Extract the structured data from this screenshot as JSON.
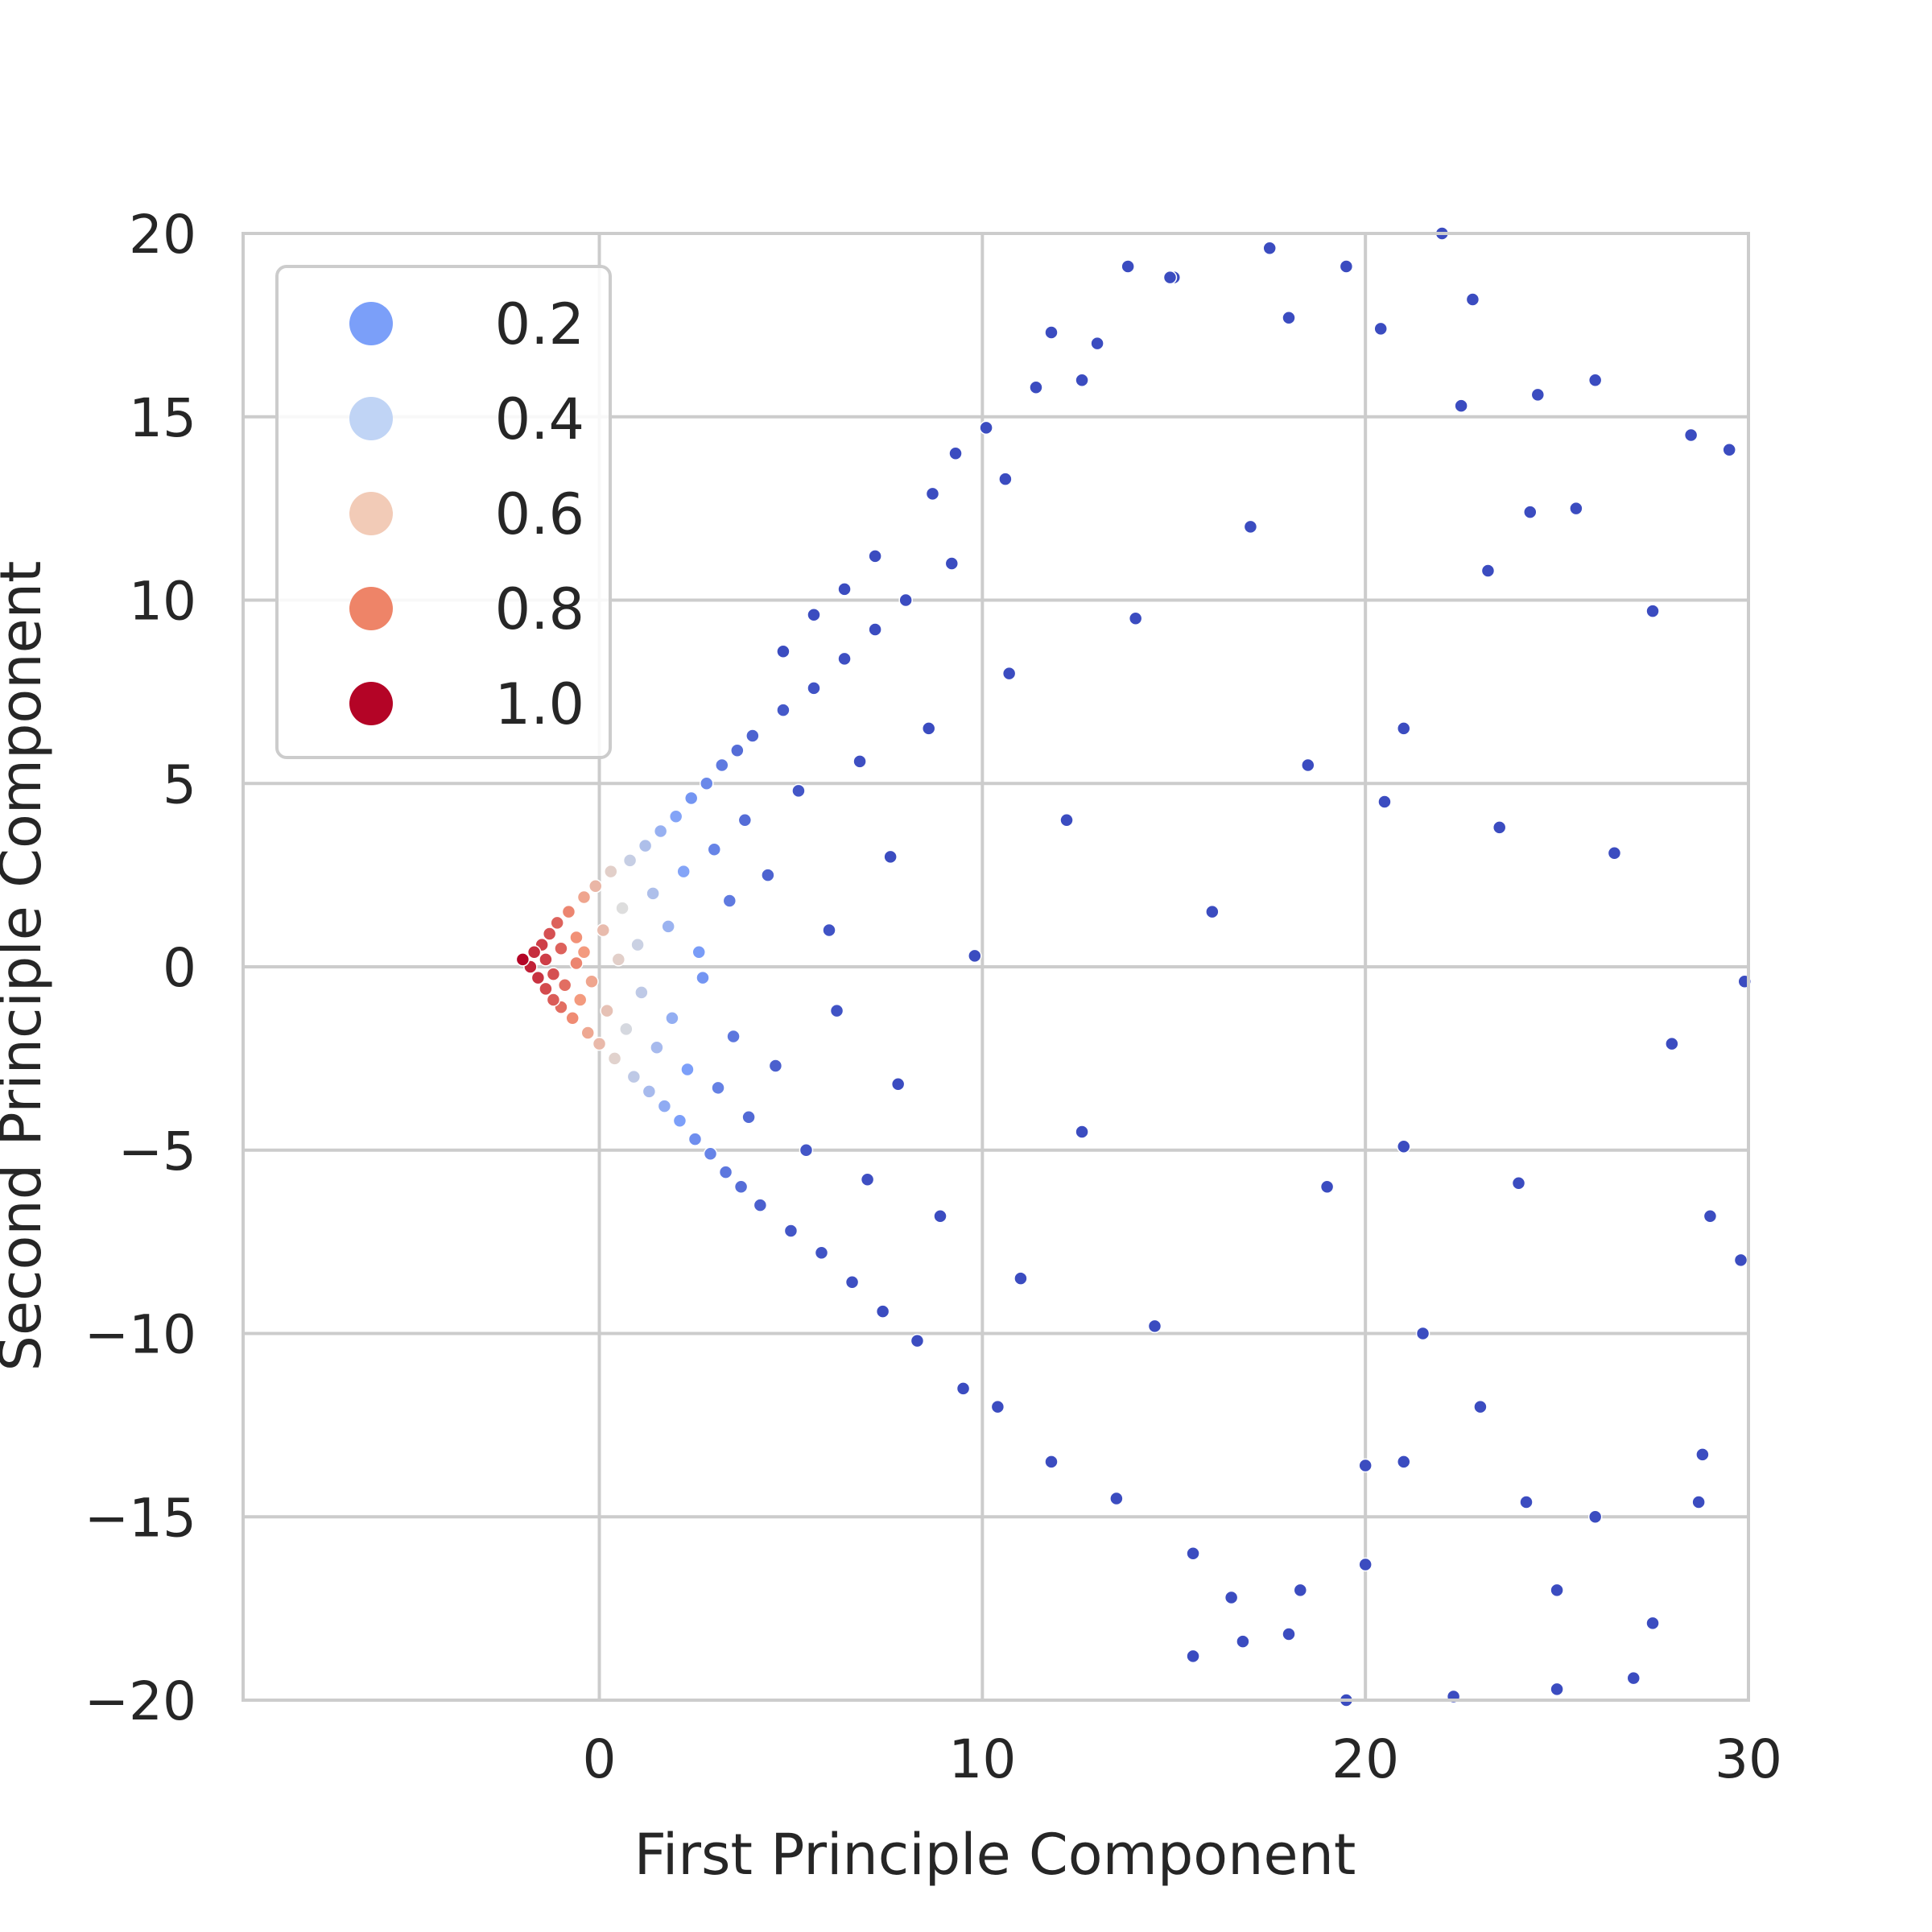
{
  "chart_data": {
    "type": "scatter",
    "title": "",
    "xlabel": "First Principle Component",
    "ylabel": "Second Principle Component",
    "xlim": [
      -9.3,
      30
    ],
    "ylim": [
      -20,
      20
    ],
    "xticks": [
      0,
      10,
      20,
      30
    ],
    "yticks": [
      20,
      15,
      10,
      5,
      0,
      -5,
      -10,
      -15,
      -20
    ],
    "xtick_labels": [
      "0",
      "10",
      "20",
      "30"
    ],
    "ytick_labels": [
      "20",
      "15",
      "10",
      "5",
      "0",
      "−5",
      "−10",
      "−15",
      "−20"
    ],
    "grid": true,
    "legend_position": "top-left",
    "hue_colormap": "coolwarm",
    "legend": [
      {
        "label": "0.2",
        "color": "#7b9ff9"
      },
      {
        "label": "0.4",
        "color": "#c0d4f5"
      },
      {
        "label": "0.6",
        "color": "#f2cbb7"
      },
      {
        "label": "0.8",
        "color": "#ee8468"
      },
      {
        "label": "1.0",
        "color": "#b40426"
      }
    ],
    "points_note_value_range": [
      0.0,
      1.0
    ],
    "points": [
      [
        -2.0,
        0.2,
        1.0
      ],
      [
        -1.8,
        0.0,
        0.95
      ],
      [
        -1.7,
        0.4,
        0.93
      ],
      [
        -1.6,
        -0.3,
        0.92
      ],
      [
        -1.5,
        0.6,
        0.9
      ],
      [
        -1.4,
        -0.6,
        0.88
      ],
      [
        -1.3,
        0.9,
        0.87
      ],
      [
        -1.2,
        -0.9,
        0.85
      ],
      [
        -1.1,
        1.2,
        0.84
      ],
      [
        -1.0,
        -1.1,
        0.82
      ],
      [
        -1.4,
        0.2,
        0.9
      ],
      [
        -1.2,
        -0.2,
        0.87
      ],
      [
        -1.0,
        0.5,
        0.84
      ],
      [
        -0.9,
        -0.5,
        0.82
      ],
      [
        -0.8,
        1.5,
        0.78
      ],
      [
        -0.7,
        -1.4,
        0.77
      ],
      [
        -0.6,
        0.8,
        0.76
      ],
      [
        -0.5,
        -0.9,
        0.74
      ],
      [
        -0.4,
        1.9,
        0.7
      ],
      [
        -0.3,
        -1.8,
        0.69
      ],
      [
        -0.6,
        0.1,
        0.78
      ],
      [
        -0.4,
        0.4,
        0.74
      ],
      [
        -0.2,
        -0.4,
        0.7
      ],
      [
        -0.1,
        2.2,
        0.64
      ],
      [
        0.0,
        -2.1,
        0.63
      ],
      [
        0.1,
        1.0,
        0.62
      ],
      [
        0.2,
        -1.2,
        0.6
      ],
      [
        0.3,
        2.6,
        0.55
      ],
      [
        0.4,
        -2.5,
        0.54
      ],
      [
        0.5,
        0.2,
        0.55
      ],
      [
        0.6,
        1.6,
        0.5
      ],
      [
        0.7,
        -1.7,
        0.48
      ],
      [
        0.8,
        2.9,
        0.44
      ],
      [
        0.9,
        -3.0,
        0.42
      ],
      [
        1.0,
        0.6,
        0.45
      ],
      [
        1.1,
        -0.7,
        0.42
      ],
      [
        1.2,
        3.3,
        0.38
      ],
      [
        1.3,
        -3.4,
        0.36
      ],
      [
        1.4,
        2.0,
        0.38
      ],
      [
        1.5,
        -2.2,
        0.36
      ],
      [
        1.6,
        3.7,
        0.32
      ],
      [
        1.7,
        -3.8,
        0.3
      ],
      [
        1.8,
        1.1,
        0.33
      ],
      [
        1.9,
        -1.4,
        0.31
      ],
      [
        2.0,
        4.1,
        0.27
      ],
      [
        2.1,
        -4.2,
        0.25
      ],
      [
        2.2,
        2.6,
        0.27
      ],
      [
        2.3,
        -2.8,
        0.25
      ],
      [
        2.4,
        4.6,
        0.22
      ],
      [
        2.5,
        -4.7,
        0.2
      ],
      [
        2.6,
        0.4,
        0.24
      ],
      [
        2.7,
        -0.3,
        0.22
      ],
      [
        2.8,
        5.0,
        0.18
      ],
      [
        2.9,
        -5.1,
        0.17
      ],
      [
        3.0,
        3.2,
        0.17
      ],
      [
        3.1,
        -3.3,
        0.16
      ],
      [
        3.2,
        5.5,
        0.14
      ],
      [
        3.3,
        -5.6,
        0.13
      ],
      [
        3.4,
        1.8,
        0.14
      ],
      [
        3.5,
        -1.9,
        0.13
      ],
      [
        3.6,
        5.9,
        0.1
      ],
      [
        3.7,
        -6.0,
        0.1
      ],
      [
        3.8,
        4.0,
        0.1
      ],
      [
        3.9,
        -4.1,
        0.09
      ],
      [
        4.0,
        6.3,
        0.07
      ],
      [
        4.2,
        -6.5,
        0.06
      ],
      [
        4.4,
        2.5,
        0.07
      ],
      [
        4.6,
        -2.7,
        0.06
      ],
      [
        4.8,
        7.0,
        0.04
      ],
      [
        5.0,
        -7.2,
        0.03
      ],
      [
        5.2,
        4.8,
        0.03
      ],
      [
        5.4,
        -5.0,
        0.03
      ],
      [
        5.6,
        7.6,
        0.02
      ],
      [
        5.8,
        -7.8,
        0.02
      ],
      [
        6.0,
        1.0,
        0.02
      ],
      [
        6.2,
        -1.2,
        0.02
      ],
      [
        6.4,
        8.4,
        0.01
      ],
      [
        6.6,
        -8.6,
        0.01
      ],
      [
        6.8,
        5.6,
        0.01
      ],
      [
        7.0,
        -5.8,
        0.01
      ],
      [
        7.2,
        9.2,
        0.0
      ],
      [
        7.4,
        -9.4,
        0.0
      ],
      [
        7.6,
        3.0,
        0.0
      ],
      [
        7.8,
        -3.2,
        0.0
      ],
      [
        8.0,
        10.0,
        0.0
      ],
      [
        8.3,
        -10.2,
        0.0
      ],
      [
        8.6,
        6.5,
        0.0
      ],
      [
        8.9,
        -6.8,
        0.0
      ],
      [
        9.2,
        11.0,
        0.0
      ],
      [
        9.5,
        -11.5,
        0.0
      ],
      [
        9.8,
        0.3,
        0.0
      ],
      [
        10.1,
        14.7,
        0.0
      ],
      [
        10.4,
        -12.0,
        0.0
      ],
      [
        10.7,
        8.0,
        0.0
      ],
      [
        11.0,
        -8.5,
        0.0
      ],
      [
        11.4,
        15.8,
        0.0
      ],
      [
        11.8,
        -13.5,
        0.0
      ],
      [
        12.2,
        4.0,
        0.0
      ],
      [
        12.6,
        -4.5,
        0.0
      ],
      [
        13.0,
        17.0,
        0.0
      ],
      [
        13.5,
        -14.5,
        0.0
      ],
      [
        14.0,
        9.5,
        0.0
      ],
      [
        14.5,
        -9.8,
        0.0
      ],
      [
        15.0,
        18.8,
        0.0
      ],
      [
        15.5,
        -16.0,
        0.0
      ],
      [
        16.0,
        1.5,
        0.0
      ],
      [
        16.5,
        -17.2,
        0.0
      ],
      [
        17.0,
        12.0,
        0.0
      ],
      [
        17.5,
        19.6,
        0.0
      ],
      [
        18.0,
        -18.2,
        0.0
      ],
      [
        18.5,
        5.5,
        0.0
      ],
      [
        19.0,
        -6.0,
        0.0
      ],
      [
        19.5,
        19.1,
        0.0
      ],
      [
        20.0,
        -13.6,
        0.0
      ],
      [
        20.5,
        4.5,
        0.0
      ],
      [
        21.0,
        6.5,
        0.0
      ],
      [
        21.5,
        -10.0,
        0.0
      ],
      [
        22.0,
        20.0,
        0.0
      ],
      [
        22.5,
        15.3,
        0.0
      ],
      [
        23.0,
        -12.0,
        0.0
      ],
      [
        23.5,
        3.8,
        0.0
      ],
      [
        24.0,
        -5.9,
        0.0
      ],
      [
        24.5,
        15.6,
        0.0
      ],
      [
        25.0,
        -19.7,
        0.0
      ],
      [
        25.5,
        12.5,
        0.0
      ],
      [
        26.0,
        -15.0,
        0.0
      ],
      [
        26.5,
        3.1,
        0.0
      ],
      [
        27.0,
        -19.4,
        0.0
      ],
      [
        27.5,
        9.7,
        0.0
      ],
      [
        28.0,
        -2.1,
        0.0
      ],
      [
        28.5,
        14.5,
        0.0
      ],
      [
        29.0,
        -6.8,
        0.0
      ],
      [
        29.5,
        14.1,
        0.0
      ],
      [
        29.8,
        -8.0,
        0.0
      ],
      [
        29.9,
        -0.4,
        0.0
      ],
      [
        20.4,
        17.4,
        0.0
      ],
      [
        18.0,
        17.7,
        0.0
      ],
      [
        14.9,
        18.8,
        0.0
      ],
      [
        13.8,
        19.1,
        0.0
      ],
      [
        12.6,
        16.0,
        0.0
      ],
      [
        11.8,
        17.3,
        0.0
      ],
      [
        10.6,
        13.3,
        0.0
      ],
      [
        9.3,
        14.0,
        0.0
      ],
      [
        8.7,
        12.9,
        0.0
      ],
      [
        7.2,
        11.2,
        0.0
      ],
      [
        6.4,
        10.3,
        0.0
      ],
      [
        5.6,
        9.6,
        0.0
      ],
      [
        4.8,
        8.6,
        0.0
      ],
      [
        24.3,
        12.4,
        0.0
      ],
      [
        23.2,
        10.8,
        0.0
      ],
      [
        22.8,
        18.2,
        0.0
      ],
      [
        26.0,
        16.0,
        0.0
      ],
      [
        21.0,
        -4.9,
        0.0
      ],
      [
        20.0,
        -16.3,
        0.0
      ],
      [
        19.5,
        -20.0,
        0.0
      ],
      [
        15.5,
        -18.8,
        0.0
      ],
      [
        16.8,
        -18.4,
        0.0
      ],
      [
        18.3,
        -17.0,
        0.0
      ],
      [
        24.2,
        -14.6,
        0.0
      ],
      [
        27.5,
        -17.9,
        0.0
      ],
      [
        28.7,
        -14.6,
        0.0
      ],
      [
        28.8,
        -13.3,
        0.0
      ],
      [
        22.3,
        -19.9,
        0.0
      ],
      [
        25.0,
        -17.0,
        0.0
      ],
      [
        21.0,
        -13.5,
        0.0
      ]
    ]
  }
}
